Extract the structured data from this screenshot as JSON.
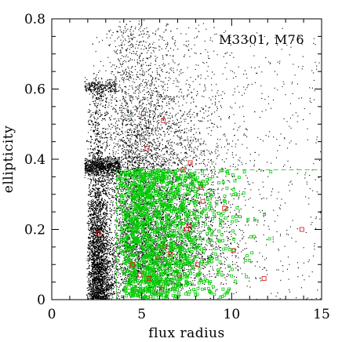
{
  "chart_data": {
    "type": "scatter",
    "xlabel": "flux radius",
    "ylabel": "ellipticity",
    "xlim": [
      0,
      15
    ],
    "ylim": [
      0,
      0.8
    ],
    "x_ticks": [
      "0",
      "5",
      "10",
      "15"
    ],
    "y_ticks": [
      "0",
      "0.2",
      "0.4",
      "0.6",
      "0.8"
    ],
    "x_tick_values": [
      0,
      5,
      10,
      15
    ],
    "y_tick_values": [
      0,
      0.2,
      0.4,
      0.6,
      0.8
    ],
    "annotation": "M3301, M76",
    "grid": false,
    "selection_box": {
      "x_min": 3.6,
      "x_max": 15,
      "y_max": 0.37
    },
    "series": [
      {
        "style": "black dots",
        "color": "#000000",
        "description_points": "dense field-object cloud; stellar locus at x≈1.8–3.5, y 0–0.65; sparse envelope to x≈15",
        "density_model": {
          "locus_x_range": [
            1.8,
            3.5
          ],
          "locus_y_range": [
            0.0,
            0.65
          ],
          "envelope_x_range": [
            3.5,
            15
          ],
          "envelope_y_range": [
            0.0,
            0.8
          ]
        }
      },
      {
        "style": "green open squares",
        "color": "#00cc00",
        "region": {
          "x_min": 3.6,
          "x_max": 14.0,
          "y_min": 0.0,
          "y_max": 0.37
        }
      },
      {
        "style": "red open squares",
        "color": "#dd2222",
        "points": [
          [
            5.1,
            0.53
          ],
          [
            6.2,
            0.51
          ],
          [
            5.3,
            0.43
          ],
          [
            7.7,
            0.39
          ],
          [
            7.3,
            0.37
          ],
          [
            8.3,
            0.32
          ],
          [
            8.4,
            0.28
          ],
          [
            9.6,
            0.26
          ],
          [
            7.6,
            0.21
          ],
          [
            7.5,
            0.2
          ],
          [
            13.9,
            0.2
          ],
          [
            2.6,
            0.19
          ],
          [
            6.3,
            0.15
          ],
          [
            10.1,
            0.14
          ],
          [
            6.6,
            0.13
          ],
          [
            5.9,
            0.12
          ],
          [
            4.9,
            0.07
          ],
          [
            11.8,
            0.06
          ],
          [
            5.4,
            0.06
          ],
          [
            6.1,
            0.03
          ],
          [
            8.1,
            0.1
          ],
          [
            4.5,
            0.1
          ],
          [
            7.1,
            0.07
          ]
        ]
      }
    ]
  }
}
